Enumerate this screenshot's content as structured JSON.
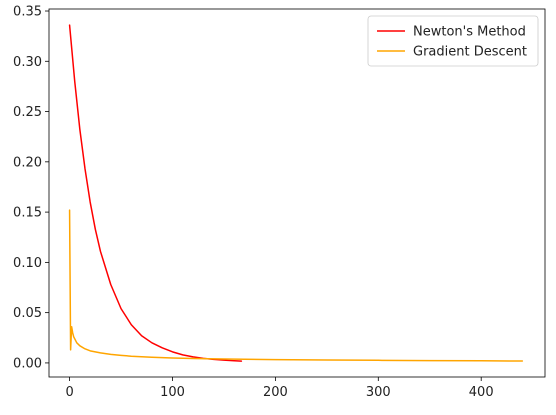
{
  "chart_data": {
    "type": "line",
    "title": "",
    "xlabel": "",
    "ylabel": "",
    "xlim": [
      -20,
      462
    ],
    "ylim": [
      -0.014,
      0.352
    ],
    "xticks": [
      0,
      100,
      200,
      300,
      400
    ],
    "xtick_labels": [
      "0",
      "100",
      "200",
      "300",
      "400"
    ],
    "yticks": [
      0.0,
      0.05,
      0.1,
      0.15,
      0.2,
      0.25,
      0.3,
      0.35
    ],
    "ytick_labels": [
      "0.00",
      "0.05",
      "0.10",
      "0.15",
      "0.20",
      "0.25",
      "0.30",
      "0.35"
    ],
    "grid": false,
    "legend_position": "top-right",
    "series": [
      {
        "name": "Newton's Method",
        "color": "#ff0000",
        "x": [
          0,
          5,
          10,
          15,
          20,
          25,
          30,
          40,
          50,
          60,
          70,
          80,
          90,
          100,
          110,
          120,
          130,
          140,
          150,
          160,
          167
        ],
        "y": [
          0.336,
          0.28,
          0.232,
          0.193,
          0.16,
          0.133,
          0.111,
          0.078,
          0.054,
          0.038,
          0.027,
          0.02,
          0.015,
          0.011,
          0.008,
          0.006,
          0.0045,
          0.0035,
          0.0028,
          0.0022,
          0.0018
        ]
      },
      {
        "name": "Gradient Descent",
        "color": "#ffa500",
        "x": [
          0,
          1,
          2,
          3,
          4,
          5,
          7,
          10,
          15,
          20,
          30,
          40,
          50,
          60,
          80,
          100,
          120,
          150,
          200,
          250,
          300,
          350,
          400,
          440
        ],
        "y": [
          0.152,
          0.013,
          0.036,
          0.03,
          0.026,
          0.024,
          0.02,
          0.017,
          0.014,
          0.012,
          0.01,
          0.0085,
          0.0075,
          0.0067,
          0.0056,
          0.0049,
          0.0044,
          0.0039,
          0.0033,
          0.0029,
          0.0026,
          0.0023,
          0.0021,
          0.0019
        ]
      }
    ]
  }
}
